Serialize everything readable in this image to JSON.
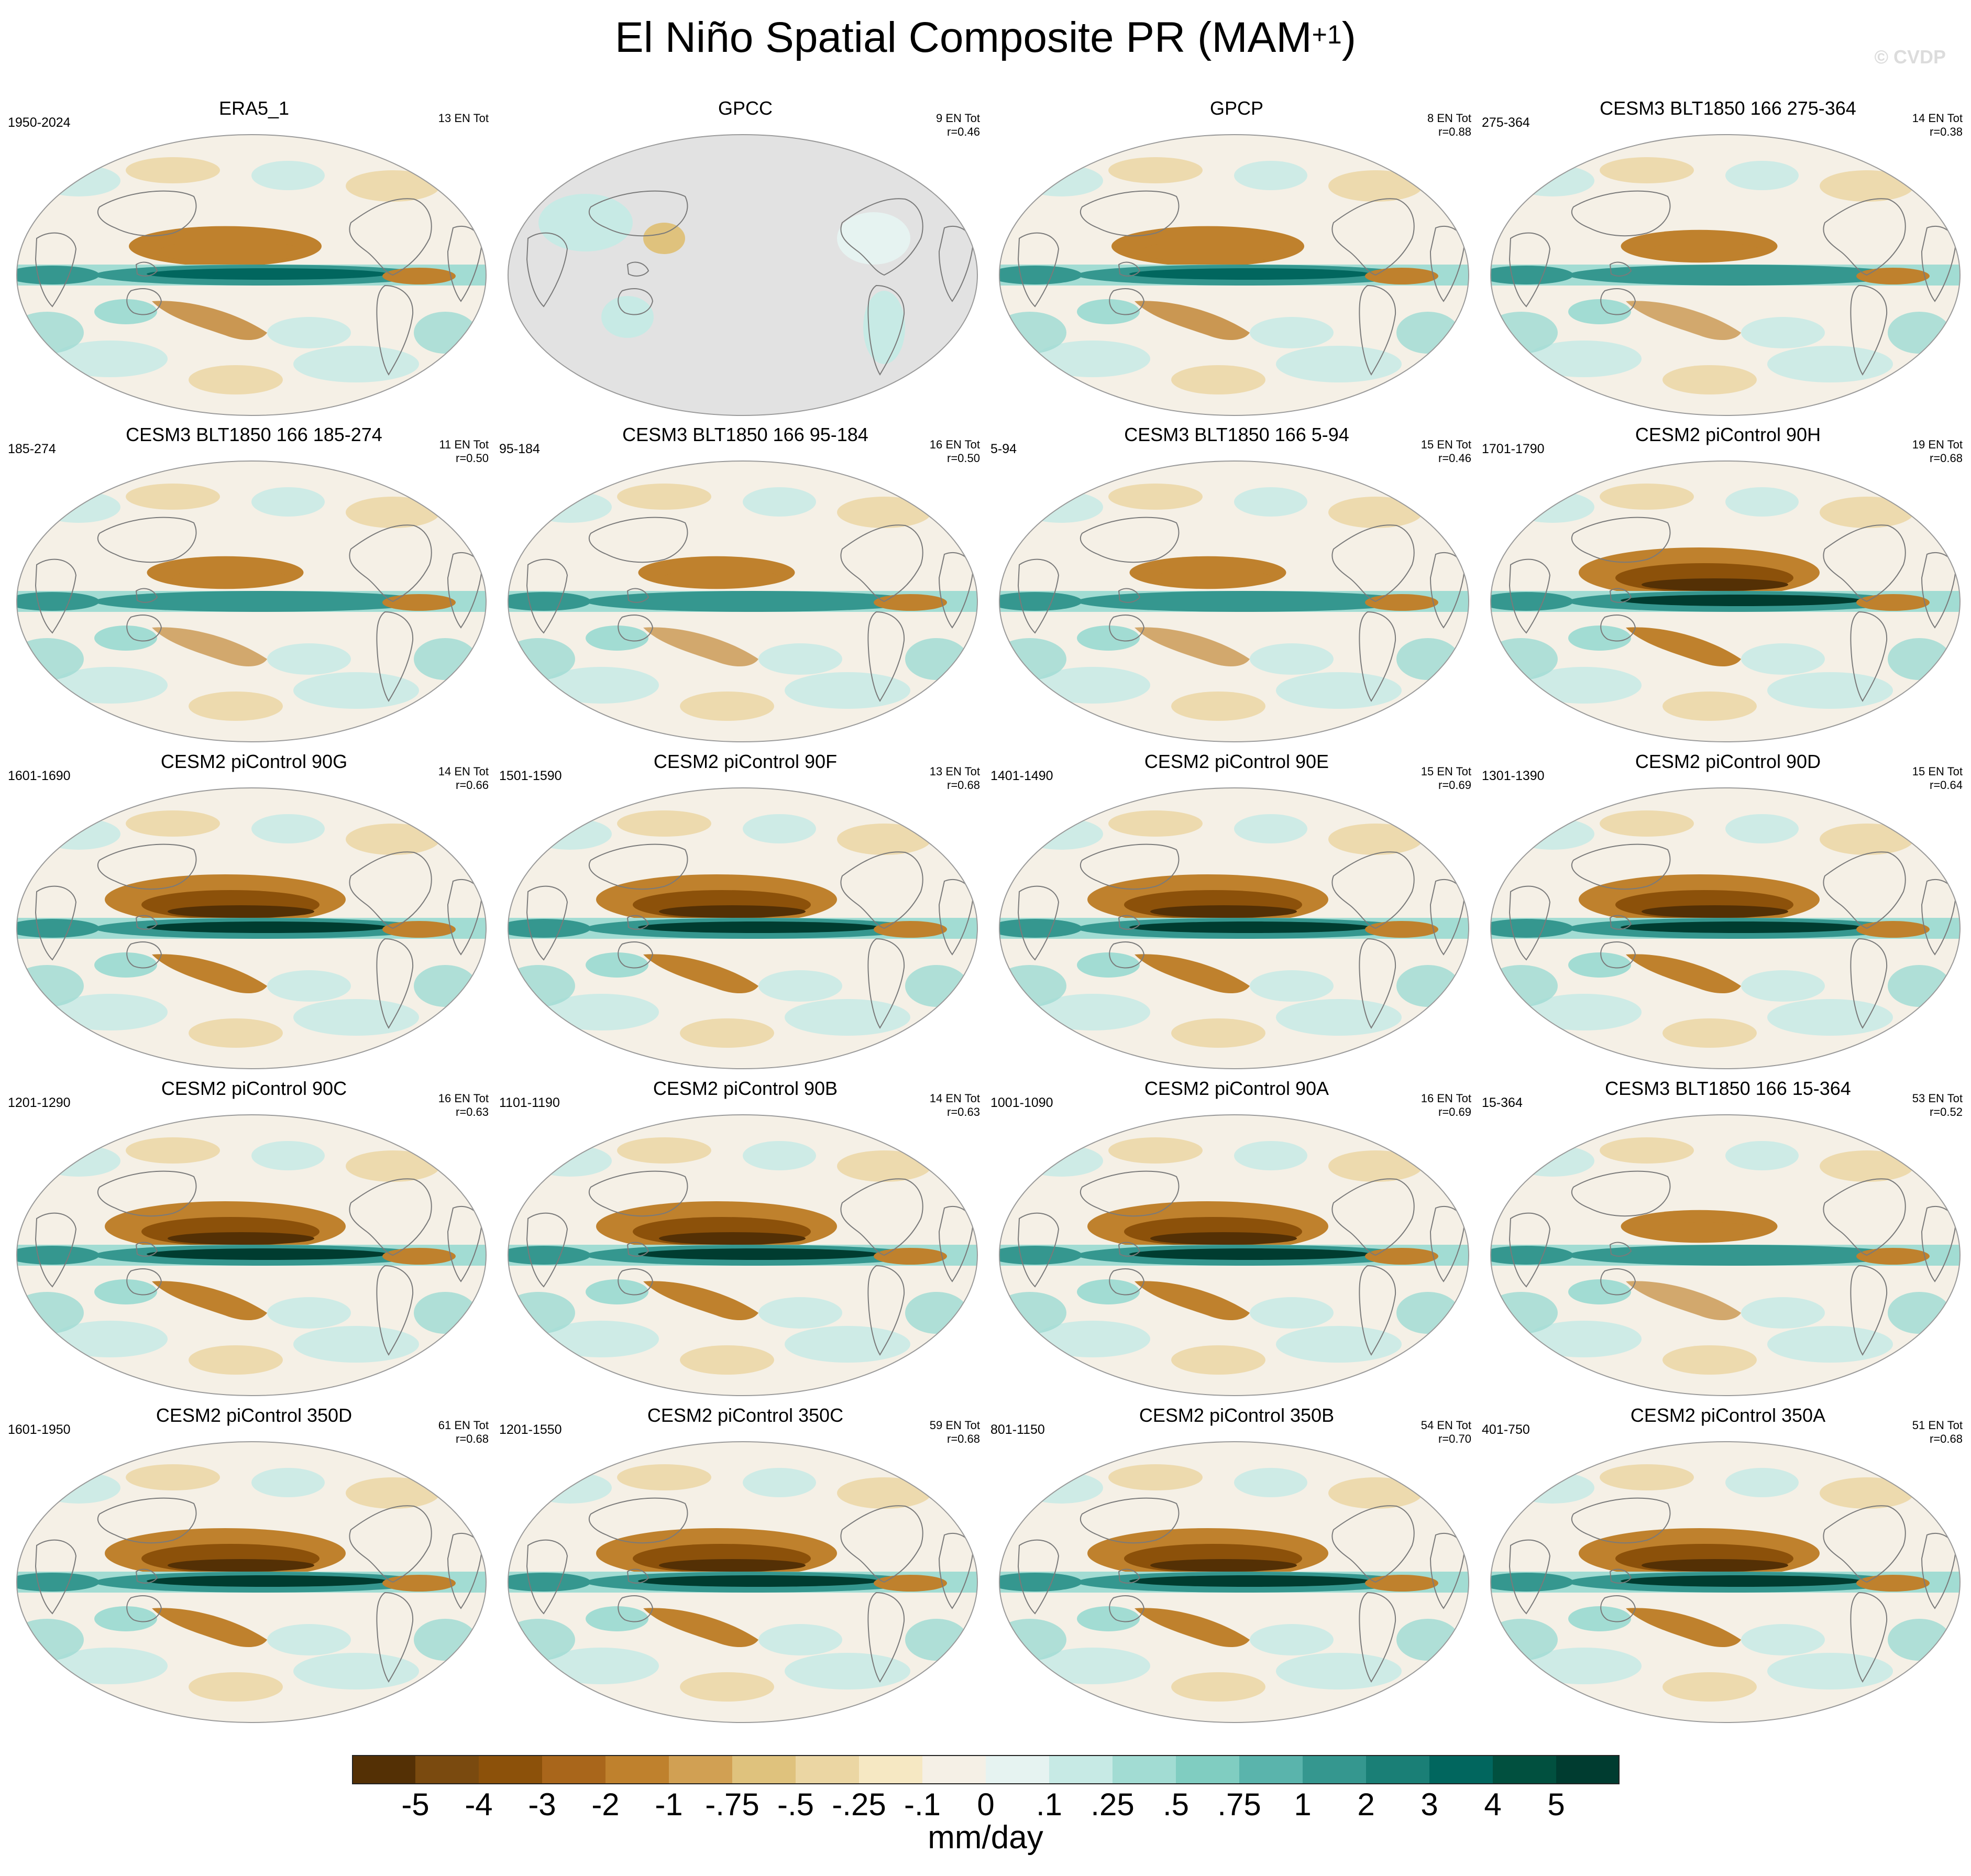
{
  "figure": {
    "title": "El Niño Spatial Composite PR (MAM",
    "title_superscript": "+1",
    "title_close": ")",
    "watermark": "© CVDP"
  },
  "panels": [
    {
      "title": "ERA5_1",
      "period": "1950-2024",
      "events": "13 EN Tot",
      "corr": "",
      "style": "obs",
      "land_only": false
    },
    {
      "title": "GPCC",
      "period": "",
      "events": "9 EN Tot",
      "corr": "r=0.46",
      "style": "land",
      "land_only": true
    },
    {
      "title": "GPCP",
      "period": "",
      "events": "8 EN Tot",
      "corr": "r=0.88",
      "style": "obs",
      "land_only": false
    },
    {
      "title": "CESM3 BLT1850 166 275-364",
      "period": "275-364",
      "events": "14 EN Tot",
      "corr": "r=0.38",
      "style": "weak",
      "land_only": false
    },
    {
      "title": "CESM3 BLT1850 166 185-274",
      "period": "185-274",
      "events": "11 EN Tot",
      "corr": "r=0.50",
      "style": "weak",
      "land_only": false
    },
    {
      "title": "CESM3 BLT1850 166 95-184",
      "period": "95-184",
      "events": "16 EN Tot",
      "corr": "r=0.50",
      "style": "weak",
      "land_only": false
    },
    {
      "title": "CESM3 BLT1850 166 5-94",
      "period": "5-94",
      "events": "15 EN Tot",
      "corr": "r=0.46",
      "style": "weak",
      "land_only": false
    },
    {
      "title": "CESM2 piControl 90H",
      "period": "1701-1790",
      "events": "19 EN Tot",
      "corr": "r=0.68",
      "style": "strong",
      "land_only": false
    },
    {
      "title": "CESM2 piControl 90G",
      "period": "1601-1690",
      "events": "14 EN Tot",
      "corr": "r=0.66",
      "style": "strong",
      "land_only": false
    },
    {
      "title": "CESM2 piControl 90F",
      "period": "1501-1590",
      "events": "13 EN Tot",
      "corr": "r=0.68",
      "style": "strong",
      "land_only": false
    },
    {
      "title": "CESM2 piControl 90E",
      "period": "1401-1490",
      "events": "15 EN Tot",
      "corr": "r=0.69",
      "style": "strong",
      "land_only": false
    },
    {
      "title": "CESM2 piControl 90D",
      "period": "1301-1390",
      "events": "15 EN Tot",
      "corr": "r=0.64",
      "style": "strong",
      "land_only": false
    },
    {
      "title": "CESM2 piControl 90C",
      "period": "1201-1290",
      "events": "16 EN Tot",
      "corr": "r=0.63",
      "style": "strong",
      "land_only": false
    },
    {
      "title": "CESM2 piControl 90B",
      "period": "1101-1190",
      "events": "14 EN Tot",
      "corr": "r=0.63",
      "style": "strong",
      "land_only": false
    },
    {
      "title": "CESM2 piControl 90A",
      "period": "1001-1090",
      "events": "16 EN Tot",
      "corr": "r=0.69",
      "style": "strong",
      "land_only": false
    },
    {
      "title": "CESM3 BLT1850 166 15-364",
      "period": "15-364",
      "events": "53 EN Tot",
      "corr": "r=0.52",
      "style": "weak",
      "land_only": false
    },
    {
      "title": "CESM2 piControl 350D",
      "period": "1601-1950",
      "events": "61 EN Tot",
      "corr": "r=0.68",
      "style": "strong",
      "land_only": false
    },
    {
      "title": "CESM2 piControl 350C",
      "period": "1201-1550",
      "events": "59 EN Tot",
      "corr": "r=0.68",
      "style": "strong",
      "land_only": false
    },
    {
      "title": "CESM2 piControl 350B",
      "period": "801-1150",
      "events": "54 EN Tot",
      "corr": "r=0.70",
      "style": "strong",
      "land_only": false
    },
    {
      "title": "CESM2 piControl 350A",
      "period": "401-750",
      "events": "51 EN Tot",
      "corr": "r=0.68",
      "style": "strong",
      "land_only": false
    }
  ],
  "colorbar": {
    "unit": "mm/day",
    "tick_labels": [
      "-5",
      "-4",
      "-3",
      "-2",
      "-1",
      "-.75",
      "-.5",
      "-.25",
      "-.1",
      "0",
      ".1",
      ".25",
      ".5",
      ".75",
      "1",
      "2",
      "3",
      "4",
      "5"
    ],
    "colors": [
      "#543005",
      "#7a4a0f",
      "#8c510a",
      "#a9661b",
      "#bf812d",
      "#d1a053",
      "#dfc27d",
      "#ebd6a3",
      "#f6e8c3",
      "#f5f0e6",
      "#e6f3f1",
      "#c7eae5",
      "#a2dcd3",
      "#80cdc1",
      "#5ab4ac",
      "#35978f",
      "#1a7f76",
      "#01665e",
      "#01503f",
      "#003c30"
    ]
  },
  "colors": {
    "land_gray": "#e2e2e2",
    "coast": "#7a7a7a",
    "neutral": "#f5f0e6"
  }
}
